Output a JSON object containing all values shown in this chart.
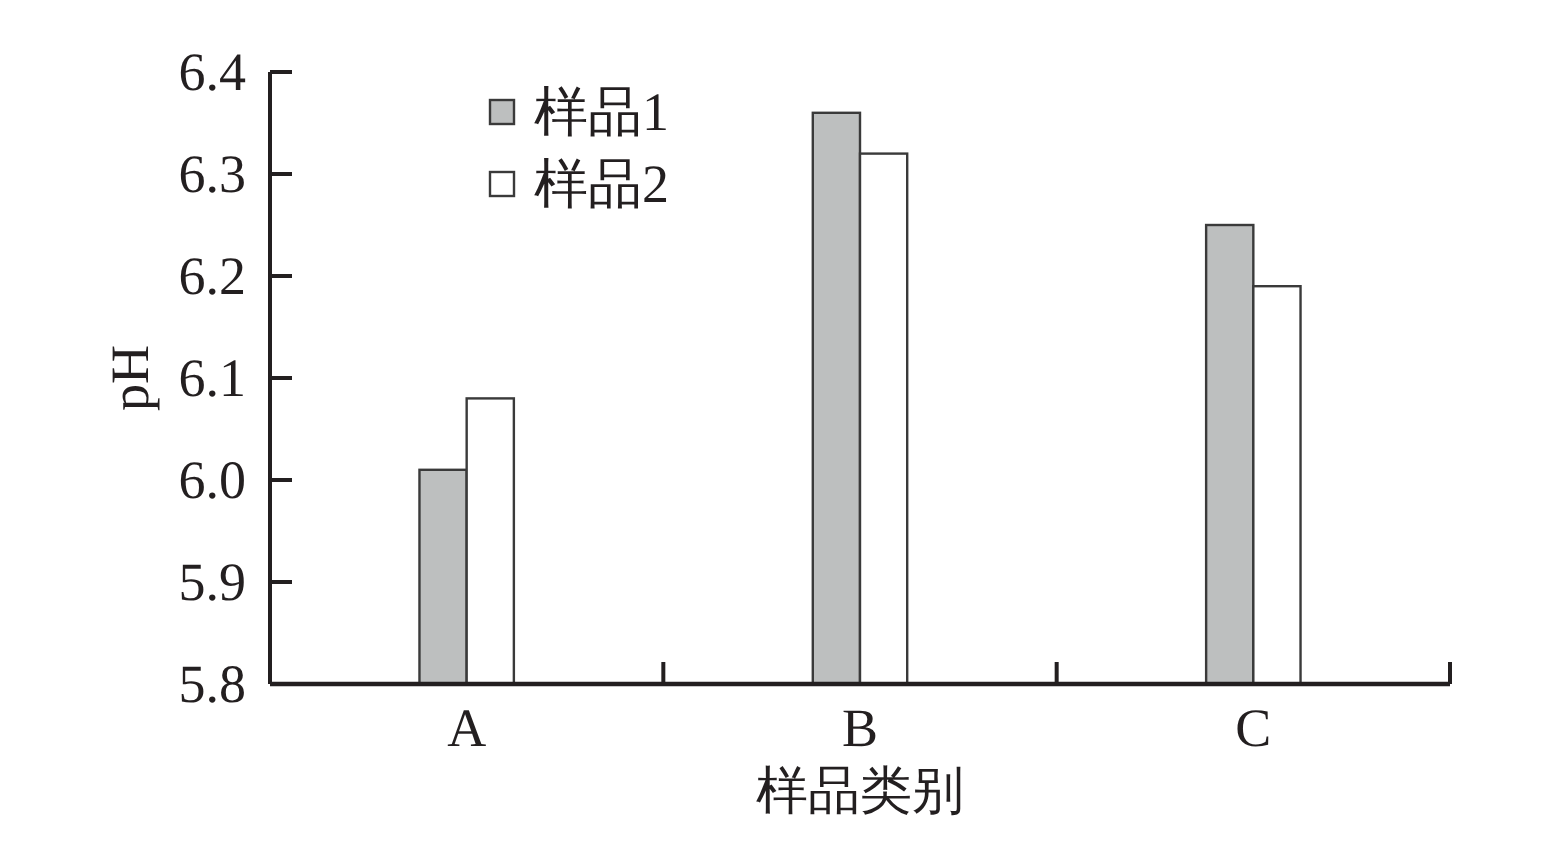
{
  "chart_data": {
    "type": "bar",
    "xlabel": "样品类别",
    "ylabel": "pH",
    "categories": [
      "A",
      "B",
      "C"
    ],
    "series": [
      {
        "name": "样品1",
        "color": "#bdbfbf",
        "values": [
          6.01,
          6.36,
          6.25
        ]
      },
      {
        "name": "样品2",
        "color": "#ffffff",
        "values": [
          6.08,
          6.32,
          6.19
        ]
      }
    ],
    "ylim": [
      5.8,
      6.4
    ],
    "yticks": [
      5.8,
      5.9,
      {
        "value": 6,
        "label": "6.0"
      },
      6.1,
      6.2,
      6.3,
      6.4
    ],
    "legend": "top left"
  }
}
